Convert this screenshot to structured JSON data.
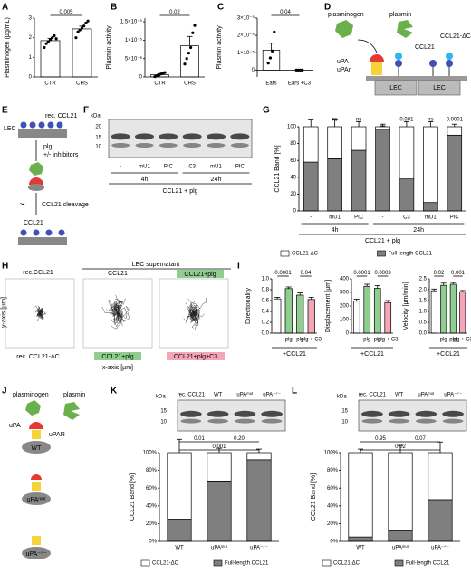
{
  "chart_data": [
    {
      "panel": "A",
      "type": "bar",
      "ylabel": "Plasminogen (µg/mL)",
      "categories": [
        "CTR",
        "CHS"
      ],
      "values": [
        1.85,
        2.45
      ],
      "errors": [
        0.12,
        0.14
      ],
      "points": [
        [
          1.5,
          1.7,
          1.8,
          1.9,
          2.0,
          2.1,
          1.95
        ],
        [
          2.0,
          2.3,
          2.4,
          2.5,
          2.6,
          2.75,
          2.85
        ]
      ],
      "colors": [
        "#ffffff",
        "#ffffff"
      ],
      "ylim": [
        0,
        3
      ],
      "yticks": [
        0,
        1,
        2,
        3
      ],
      "annotations": [
        "0.005"
      ]
    },
    {
      "panel": "B",
      "type": "bar",
      "ylabel": "Plasmin activity",
      "categories": [
        "CTR",
        "CHS"
      ],
      "values": [
        6e-07,
        8.5e-06
      ],
      "errors": [
        3e-07,
        2.5e-06
      ],
      "points": [
        [
          1e-07,
          3e-07,
          5e-07,
          8e-07,
          1e-06,
          1.2e-06
        ],
        [
          3.5e-06,
          5e-06,
          6.5e-06,
          8e-06,
          1.2e-05,
          1.4e-05
        ]
      ],
      "colors": [
        "#ffffff",
        "#ffffff"
      ],
      "ylim": [
        0,
        1.6e-05
      ],
      "yticks": [
        0,
        {
          "value": 5e-06,
          "label": "5×10⁻⁶"
        },
        {
          "value": 1e-05,
          "label": "1×10⁻⁵"
        },
        {
          "value": 1.5e-05,
          "label": "1.5×10⁻⁵"
        }
      ],
      "annotations": [
        "0.02"
      ]
    },
    {
      "panel": "C",
      "type": "bar",
      "ylabel": "Plasmin activity",
      "categories": [
        "Ears",
        "Ears +C3"
      ],
      "values": [
        1.15e-05,
        0
      ],
      "errors": [
        4e-06,
        0
      ],
      "points": [
        [
          4e-06,
          7e-06,
          1.1e-05,
          2.2e-05
        ],
        [
          0,
          0,
          0,
          0
        ]
      ],
      "colors": [
        "#ffffff",
        "#ffffff"
      ],
      "ylim": [
        -4e-06,
        3e-05
      ],
      "yticks": [
        0,
        {
          "value": 1e-05,
          "label": "1×10⁻⁵"
        },
        {
          "value": 2e-05,
          "label": "2×10⁻⁵"
        },
        {
          "value": 3e-05,
          "label": "3×10⁻⁵"
        }
      ],
      "annotations": [
        "0.04"
      ]
    },
    {
      "panel": "G",
      "type": "stacked_bar",
      "ylabel": "CCL21 Band [%]",
      "categories": [
        "-",
        "mU1",
        "PIC",
        "-",
        "C3",
        "mU1",
        "PIC"
      ],
      "series": [
        {
          "name": "Full-length CCL21",
          "color": "#7f7f7f",
          "values": [
            58,
            62,
            72,
            97,
            38,
            10,
            90
          ],
          "errors": [
            10,
            12,
            8,
            4,
            6,
            8,
            3
          ]
        },
        {
          "name": "CCL21-ΔC",
          "color": "#ffffff",
          "values": [
            42,
            38,
            28,
            3,
            62,
            90,
            10
          ],
          "errors": [
            8,
            8,
            6,
            3,
            6,
            6,
            3
          ]
        }
      ],
      "ylim": [
        0,
        100
      ],
      "yticks": [
        0,
        20,
        40,
        60,
        80,
        100
      ],
      "annotations": [
        "ns",
        "ns",
        "0.001",
        "ns",
        "0.0001"
      ],
      "groups": [
        "4h",
        "24h"
      ],
      "xlabel": "CCL21 + plg"
    },
    {
      "panel": "I",
      "type": "bar",
      "ylabel": "Directionality",
      "categories": [
        "-",
        "plg",
        "plg",
        "plg + C3"
      ],
      "values": [
        0.63,
        0.82,
        0.7,
        0.62
      ],
      "errors": [
        0.03,
        0.03,
        0.04,
        0.04
      ],
      "colors": [
        "#ffffff",
        "#8fce8f",
        "#8fce8f",
        "#f4a6b8"
      ],
      "ylim": [
        0,
        1
      ],
      "yticks": [
        {
          "value": 0,
          "label": "0.0"
        },
        0.2,
        0.4,
        0.6,
        0.8,
        {
          "value": 1,
          "label": "1.0"
        }
      ],
      "annotations": [
        "0.0001",
        "0.04"
      ],
      "xlabel": "+CCL21"
    },
    {
      "type": "bar",
      "ylabel": "Displacement [µm]",
      "categories": [
        "-",
        "plg",
        "plg",
        "plg + C3"
      ],
      "values": [
        235,
        345,
        330,
        225
      ],
      "errors": [
        15,
        15,
        20,
        15
      ],
      "colors": [
        "#ffffff",
        "#8fce8f",
        "#8fce8f",
        "#f4a6b8"
      ],
      "ylim": [
        0,
        400
      ],
      "yticks": [
        0,
        100,
        200,
        300,
        400
      ],
      "annotations": [
        "0.0001",
        "0.0003"
      ],
      "xlabel": "+CCL21"
    },
    {
      "type": "bar",
      "ylabel": "Velocity [µm/min]",
      "categories": [
        "-",
        "plg",
        "plg",
        "plg + C3"
      ],
      "values": [
        1.95,
        2.2,
        2.25,
        1.9
      ],
      "errors": [
        0.08,
        0.1,
        0.08,
        0.06
      ],
      "colors": [
        "#ffffff",
        "#8fce8f",
        "#8fce8f",
        "#f4a6b8"
      ],
      "ylim": [
        0,
        2.5
      ],
      "yticks": [
        {
          "value": 0,
          "label": "0.0"
        },
        0.5,
        {
          "value": 1,
          "label": "1.0"
        },
        1.5,
        {
          "value": 2,
          "label": "2.0"
        },
        2.5
      ],
      "annotations": [
        "0.02",
        "0.001"
      ],
      "xlabel": "+CCL21"
    },
    {
      "panel": "K",
      "type": "stacked_bar",
      "ylabel": "CCL21 Band [%]",
      "categories": [
        "WT",
        "uPAᵐᵘᵗ",
        "uPA⁻ᐟ⁻"
      ],
      "series": [
        {
          "name": "Full-length CCL21",
          "color": "#7f7f7f",
          "values": [
            25,
            68,
            92
          ],
          "errors": [
            15,
            8,
            5
          ]
        },
        {
          "name": "CCL21-ΔC",
          "color": "#ffffff",
          "values": [
            75,
            32,
            8
          ],
          "errors": [
            15,
            5,
            4
          ]
        }
      ],
      "ylim": [
        0,
        100
      ],
      "yticks": [
        {
          "value": 0,
          "label": "0%"
        },
        {
          "value": 20,
          "label": "20%"
        },
        {
          "value": 40,
          "label": "40%"
        },
        {
          "value": 60,
          "label": "60%"
        },
        {
          "value": 80,
          "label": "80%"
        },
        {
          "value": 100,
          "label": "100%"
        }
      ],
      "annotations": [
        "0.01",
        "0.20",
        "0.001"
      ]
    },
    {
      "panel": "L",
      "type": "stacked_bar",
      "ylabel": "CCL21 Band [%]",
      "categories": [
        "WT",
        "uPAᵐᵘᵗ",
        "uPA⁻ᐟ⁻"
      ],
      "series": [
        {
          "name": "Full-length CCL21",
          "color": "#7f7f7f",
          "values": [
            5,
            12,
            47
          ],
          "errors": [
            5,
            8,
            14
          ]
        },
        {
          "name": "CCL21-ΔC",
          "color": "#ffffff",
          "values": [
            95,
            88,
            53
          ],
          "errors": [
            4,
            8,
            12
          ]
        }
      ],
      "ylim": [
        0,
        100
      ],
      "yticks": [
        {
          "value": 0,
          "label": "0%"
        },
        {
          "value": 20,
          "label": "20%"
        },
        {
          "value": 40,
          "label": "40%"
        },
        {
          "value": 60,
          "label": "60%"
        },
        {
          "value": 80,
          "label": "80%"
        },
        {
          "value": 100,
          "label": "100%"
        }
      ],
      "annotations": [
        "0.95",
        "0.07",
        "0.02"
      ]
    }
  ],
  "diagram_d": {
    "panel": "D",
    "plasminogen": "plasminogen",
    "plasmin": "plasmin",
    "upa": "uPA",
    "upar": "uPAr",
    "ccl21": "CCL21",
    "ccl21_dc": "CCL21-ΔC",
    "lec": [
      "LEC",
      "LEC"
    ]
  },
  "diagram_e": {
    "panel": "E",
    "lec": "LEC",
    "rec": "rec. CCL21",
    "plg": "plg",
    "inhibitors": "+/- inhibitors",
    "cleavage": "CCL21 cleavage",
    "ccl21": "CCL21"
  },
  "blots": [
    {
      "panel": "F",
      "kda": "kDa",
      "markers": [
        "20",
        "15",
        "10"
      ],
      "lanes": [
        "-",
        "mU1",
        "PIC",
        "C3",
        "mU1",
        "PIC"
      ],
      "groups": [
        "4h",
        "24h"
      ],
      "xlabel": "CCL21 + plg"
    },
    {
      "kda": "kDa",
      "markers": [
        "15",
        "10"
      ],
      "lanes": [
        "rec. CCL21",
        "WT",
        "uPAᵐᵘᵗ",
        "uPA⁻ᐟ⁻"
      ]
    },
    {
      "kda": "kDa",
      "markers": [
        "15",
        "10"
      ],
      "lanes": [
        "rec. CCL21",
        "WT",
        "uPAᵐᵘᵗ",
        "uPA⁻ᐟ⁻"
      ]
    }
  ],
  "panel_h": {
    "panel": "H",
    "rec": "rec.CCL21",
    "rec_dc": "rec. CCL21-ΔC",
    "lec": "LEC supernatant",
    "ccl21": "CCL21",
    "plg_top": "CCL21+plg",
    "plg_bottom": "CCL21+plg",
    "plg_c3": "CCL21+plg+C3",
    "xlabel": "x-axis [µm]",
    "ylabel": "y-axis [µm]"
  },
  "diagram_j": {
    "panel": "J",
    "plasminogen": "plasminogen",
    "plasmin": "plasmin",
    "upa": "uPA",
    "upar": "uPAR",
    "wt": "WT",
    "mut": "uPAᵐᵘᵗ",
    "ko": "uPA⁻ᐟ⁻"
  }
}
